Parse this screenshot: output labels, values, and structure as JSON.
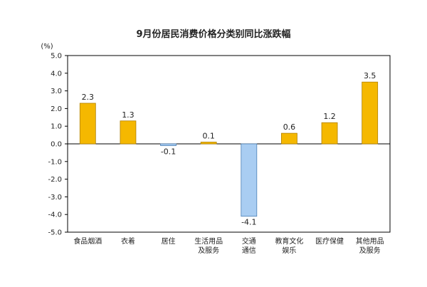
{
  "chart_data": {
    "type": "bar",
    "title": "9月份居民消费价格分类别同比涨跌幅",
    "unit": "(%)",
    "ylim": [
      -5.0,
      5.0
    ],
    "yticks": [
      "5.0",
      "4.0",
      "3.0",
      "2.0",
      "1.0",
      "0.0",
      "-1.0",
      "-2.0",
      "-3.0",
      "-4.0",
      "-5.0"
    ],
    "categories": [
      [
        "食品烟酒"
      ],
      [
        "衣着"
      ],
      [
        "居住"
      ],
      [
        "生活用品",
        "及服务"
      ],
      [
        "交通",
        "通信"
      ],
      [
        "教育文化",
        "娱乐"
      ],
      [
        "医疗保健"
      ],
      [
        "其他用品",
        "及服务"
      ]
    ],
    "values": [
      2.3,
      1.3,
      -0.1,
      0.1,
      -4.1,
      0.6,
      1.2,
      3.5
    ],
    "value_labels": [
      "2.3",
      "1.3",
      "-0.1",
      "0.1",
      "-4.1",
      "0.6",
      "1.2",
      "3.5"
    ],
    "colors": {
      "positive_fill": "#F5B800",
      "positive_stroke": "#B07F00",
      "negative_fill": "#A9CDF2",
      "negative_stroke": "#4A7FB5",
      "axis": "#000000"
    },
    "grid": false,
    "legend": "none"
  }
}
